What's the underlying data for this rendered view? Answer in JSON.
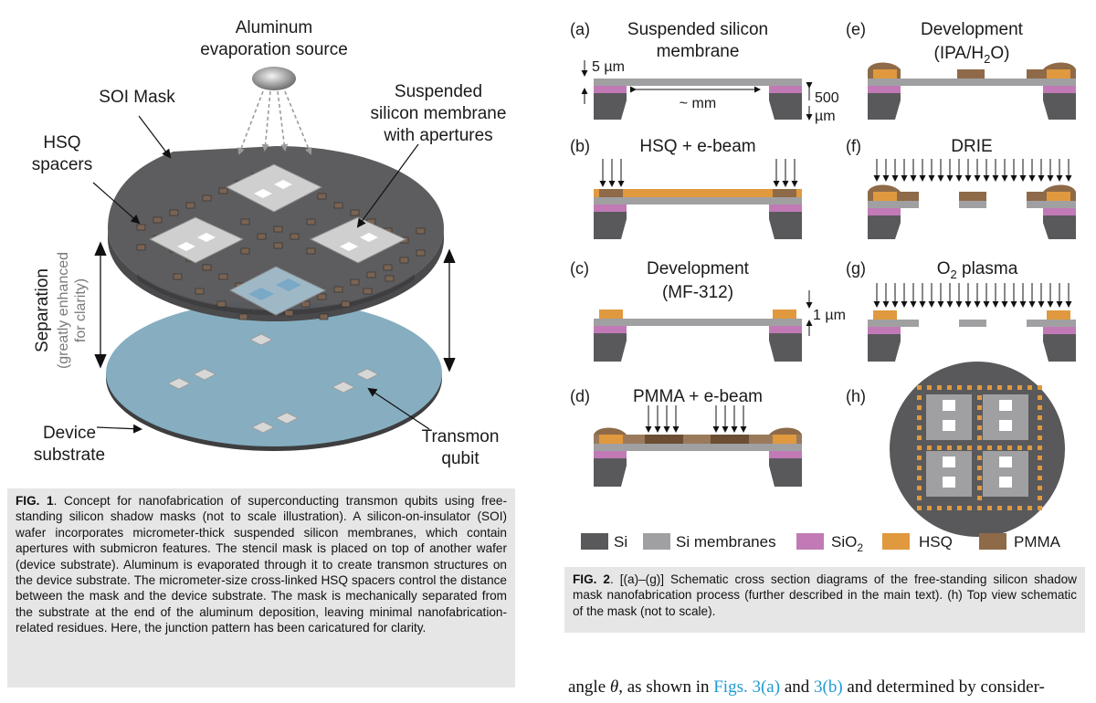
{
  "fig1": {
    "labels": {
      "source_line1": "Aluminum",
      "source_line2": "evaporation source",
      "soi_mask": "SOI Mask",
      "hsq_line1": "HSQ",
      "hsq_line2": "spacers",
      "susp_line1": "Suspended",
      "susp_line2": "silicon membrane",
      "susp_line3": "with apertures",
      "separation": "Separation",
      "sep_note1": "(greatly enhanced",
      "sep_note2": "for clarity)",
      "device_line1": "Device",
      "device_line2": "substrate",
      "transmon_line1": "Transmon",
      "transmon_line2": "qubit"
    },
    "caption": {
      "label": "FIG. 1",
      "text": ". Concept for nanofabrication of superconducting transmon qubits using free-standing silicon shadow masks (not to scale illustration). A silicon-on-insulator (SOI) wafer incorporates micrometer-thick suspended silicon membranes, which contain apertures with submicron features. The stencil mask is placed on top of another wafer (device substrate). Aluminum is evaporated through it to create transmon structures on the device substrate. The micrometer-size cross-linked HSQ spacers control the distance between the mask and the device substrate. The mask is mechanically separated from the substrate at the end of the aluminum deposition, leaving minimal nanofabrication-related residues. Here, the junction pattern has been caricatured for clarity."
    }
  },
  "fig2": {
    "panels": {
      "a": {
        "letter": "(a)",
        "title1": "Suspended silicon",
        "title2": "membrane",
        "dim_5um": "5 µm",
        "dim_mm": "~ mm",
        "dim_500": "500",
        "dim_um": "µm"
      },
      "b": {
        "letter": "(b)",
        "title1": "HSQ + e-beam"
      },
      "c": {
        "letter": "(c)",
        "title1": "Development",
        "title2": "(MF-312)",
        "dim_1um": "1 µm"
      },
      "d": {
        "letter": "(d)",
        "title1": "PMMA + e-beam"
      },
      "e": {
        "letter": "(e)",
        "title1": "Development",
        "title2_pre": "(IPA/H",
        "title2_sub": "2",
        "title2_post": "O)"
      },
      "f": {
        "letter": "(f)",
        "title1": "DRIE"
      },
      "g": {
        "letter": "(g)",
        "title1_pre": "O",
        "title1_sub": "2",
        "title1_post": " plasma"
      },
      "h": {
        "letter": "(h)"
      }
    },
    "legend": {
      "si": "Si",
      "si_mem": "Si membranes",
      "sio2_pre": "SiO",
      "sio2_sub": "2",
      "hsq": "HSQ",
      "pmma": "PMMA"
    },
    "colors": {
      "si": "#59595b",
      "si_membrane": "#a0a0a2",
      "sio2": "#c17ab5",
      "hsq": "#e0993e",
      "pmma": "#8e6a48"
    },
    "caption": {
      "label": "FIG. 2",
      "text": ". [(a)–(g)] Schematic cross section diagrams of the free-standing silicon shadow mask nanofabrication process (further described in the main text). (h) Top view schematic of the mask (not to scale)."
    }
  },
  "body": {
    "pre": "angle ",
    "theta": "θ",
    "mid1": ", as shown in ",
    "link1": "Figs. 3(a)",
    "mid2": " and ",
    "link2": "3(b)",
    "post": " and determined by consider-"
  }
}
